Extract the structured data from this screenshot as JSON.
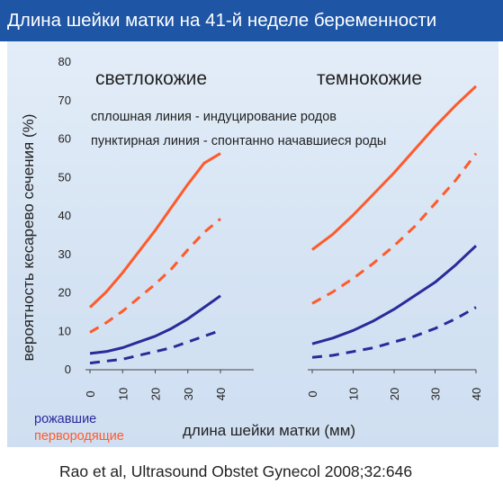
{
  "title": "Длина шейки матки на 41-й неделе беременности",
  "citation": "Rao et al, Ultrasound Obstet Gynecol 2008;32:646",
  "colors": {
    "title_bg": "#1e55a5",
    "nulliparous": "#ff5a2a",
    "parous": "#2a2a9a"
  },
  "chart_data": {
    "type": "line",
    "ylabel": "вероятность кесарево сечения (%)",
    "xlabel": "длина шейки матки (мм)",
    "ylim": [
      0,
      80
    ],
    "yticks": [
      0,
      10,
      20,
      30,
      40,
      50,
      60,
      70,
      80
    ],
    "xlim": [
      0,
      40
    ],
    "xticks": [
      0,
      10,
      20,
      30,
      40
    ],
    "line_style_notes": [
      "сплошная линия - индуцирование родов",
      "пунктирная линия - спонтанно начавшиеся роды"
    ],
    "legend": [
      {
        "label": "рожавшие",
        "color": "#2a2a9a"
      },
      {
        "label": "первородящие",
        "color": "#ff5a2a"
      }
    ],
    "panels": [
      {
        "label": "светлокожие",
        "series": [
          {
            "color": "#ff5a2a",
            "style": "solid",
            "x": [
              0,
              5,
              10,
              15,
              20,
              25,
              30,
              35,
              40
            ],
            "y": [
              16,
              20,
              25,
              30.5,
              36,
              42,
              48,
              53.5,
              56
            ]
          },
          {
            "color": "#ff5a2a",
            "style": "dashed",
            "x": [
              0,
              5,
              10,
              15,
              20,
              25,
              30,
              35,
              40
            ],
            "y": [
              9.5,
              12,
              15,
              18.5,
              22,
              26,
              31,
              35.5,
              39
            ]
          },
          {
            "color": "#2a2a9a",
            "style": "solid",
            "x": [
              0,
              5,
              10,
              15,
              20,
              25,
              30,
              35,
              40
            ],
            "y": [
              4,
              4.5,
              5.5,
              7,
              8.5,
              10.5,
              13,
              16,
              19
            ]
          },
          {
            "color": "#2a2a9a",
            "style": "dashed",
            "x": [
              0,
              5,
              10,
              15,
              20,
              25,
              30,
              35,
              40
            ],
            "y": [
              1.5,
              2,
              2.5,
              3.5,
              4.5,
              5.5,
              7,
              8.5,
              10
            ]
          }
        ]
      },
      {
        "label": "темнокожие",
        "series": [
          {
            "color": "#ff5a2a",
            "style": "solid",
            "x": [
              0,
              5,
              10,
              15,
              20,
              25,
              30,
              35,
              40
            ],
            "y": [
              31,
              35,
              40,
              45.5,
              51,
              57,
              63,
              68.5,
              73.5
            ]
          },
          {
            "color": "#ff5a2a",
            "style": "dashed",
            "x": [
              0,
              5,
              10,
              15,
              20,
              25,
              30,
              35,
              40
            ],
            "y": [
              17,
              20,
              23.5,
              27.5,
              32,
              37,
              43,
              49,
              56
            ]
          },
          {
            "color": "#2a2a9a",
            "style": "solid",
            "x": [
              0,
              5,
              10,
              15,
              20,
              25,
              30,
              35,
              40
            ],
            "y": [
              6.5,
              8,
              10,
              12.5,
              15.5,
              19,
              22.5,
              27,
              32
            ]
          },
          {
            "color": "#2a2a9a",
            "style": "dashed",
            "x": [
              0,
              5,
              10,
              15,
              20,
              25,
              30,
              35,
              40
            ],
            "y": [
              3,
              3.5,
              4.5,
              5.5,
              7,
              8.5,
              10.5,
              13,
              16
            ]
          }
        ]
      }
    ]
  }
}
